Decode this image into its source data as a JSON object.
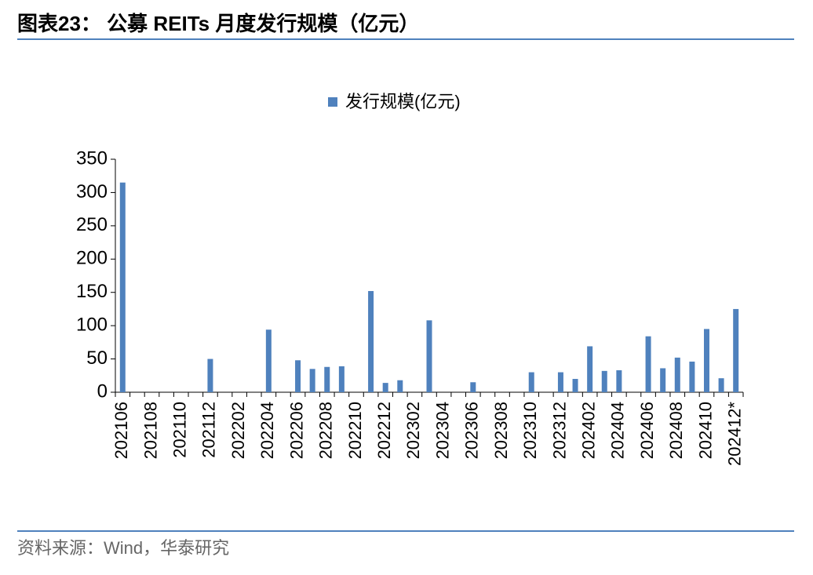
{
  "header": {
    "title": "图表23： 公募 REITs 月度发行规模（亿元）"
  },
  "chart_data": {
    "type": "bar",
    "categories": [
      "202106",
      null,
      "202108",
      null,
      "202110",
      null,
      "202112",
      null,
      "202202",
      null,
      "202204",
      null,
      "202206",
      null,
      "202208",
      null,
      "202210",
      null,
      "202212",
      null,
      "202302",
      null,
      "202304",
      null,
      "202306",
      null,
      "202308",
      null,
      "202310",
      null,
      "202312",
      null,
      "202402",
      null,
      "202404",
      null,
      "202406",
      null,
      "202408",
      null,
      "202410",
      null,
      "202412*"
    ],
    "series": [
      {
        "name": "发行规模(亿元)",
        "color": "#4f81bd",
        "values": [
          315,
          0,
          0,
          0,
          0,
          0,
          50,
          0,
          0,
          0,
          94,
          0,
          48,
          35,
          38,
          39,
          0,
          152,
          14,
          18,
          0,
          108,
          0,
          0,
          15,
          0,
          0,
          0,
          30,
          0,
          30,
          20,
          69,
          32,
          33,
          0,
          84,
          36,
          52,
          46,
          95,
          21,
          125
        ]
      }
    ],
    "ylim": [
      0,
      350
    ],
    "yticks": [
      0,
      50,
      100,
      150,
      200,
      250,
      300,
      350
    ],
    "legend": "top",
    "grid": false
  },
  "source": "资料来源：Wind，华泰研究"
}
